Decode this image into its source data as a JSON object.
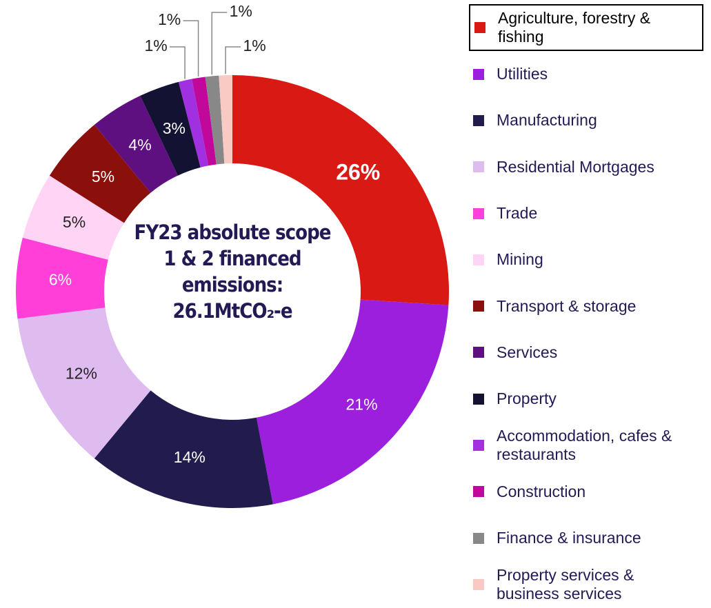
{
  "chart_data": {
    "type": "donut",
    "center_text": "FY23 absolute scope 1 & 2 financed emissions: 26.1MtCO₂-e",
    "categories": [
      "Agriculture, forestry & fishing",
      "Utilities",
      "Manufacturing",
      "Residential Mortgages",
      "Trade",
      "Mining",
      "Transport & storage",
      "Services",
      "Property",
      "Accommodation, cafes & restaurants",
      "Construction",
      "Finance & insurance",
      "Property services & business services"
    ],
    "values": [
      26,
      21,
      14,
      12,
      6,
      5,
      5,
      4,
      3,
      1,
      1,
      1,
      1
    ],
    "value_labels": [
      "26%",
      "21%",
      "14%",
      "12%",
      "6%",
      "5%",
      "5%",
      "4%",
      "3%",
      "1%",
      "1%",
      "1%",
      "1%"
    ],
    "colors": [
      "#d91a14",
      "#9b1fdc",
      "#221c4e",
      "#dfbcf0",
      "#ff3fd8",
      "#ffd4f4",
      "#8b0f0a",
      "#5e1080",
      "#141233",
      "#a030e0",
      "#c0089a",
      "#888888",
      "#f9c9c4"
    ],
    "legend_position": "right",
    "legend_highlight": 0
  }
}
